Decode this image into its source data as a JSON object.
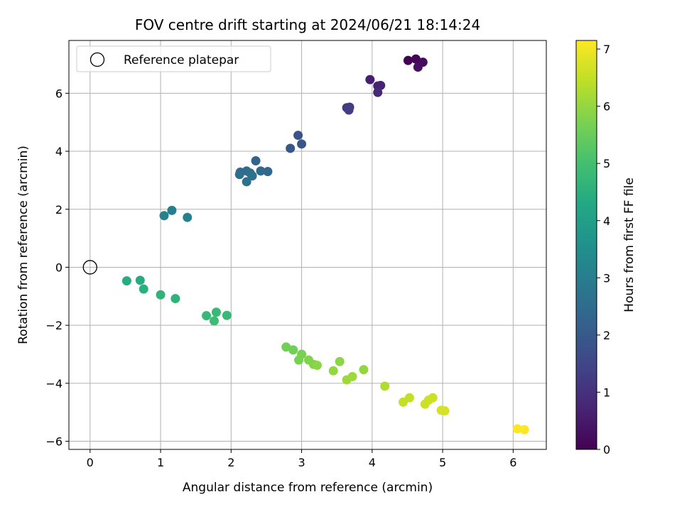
{
  "chart_data": {
    "type": "scatter",
    "title": "FOV centre drift starting at 2024/06/21 18:14:24",
    "xlabel": "Angular distance from reference (arcmin)",
    "ylabel": "Rotation from reference (arcmin)",
    "xlim": [
      -0.3,
      6.47
    ],
    "ylim": [
      -6.28,
      7.82
    ],
    "xticks": [
      0,
      1,
      2,
      3,
      4,
      5,
      6
    ],
    "yticks": [
      -6,
      -4,
      -2,
      0,
      2,
      4,
      6
    ],
    "grid": true,
    "legend": {
      "placement": "upper-left",
      "label": "Reference platepar"
    },
    "reference_point": {
      "x": 0,
      "y": 0
    },
    "colorbar": {
      "label": "Hours from first FF file",
      "colormap": "viridis",
      "range": [
        0,
        7.15
      ],
      "ticks": [
        0,
        1,
        2,
        3,
        4,
        5,
        6,
        7
      ]
    },
    "points": [
      {
        "x": 4.51,
        "y": 7.13,
        "t": 0.0
      },
      {
        "x": 4.62,
        "y": 7.18,
        "t": 0.1
      },
      {
        "x": 4.72,
        "y": 7.07,
        "t": 0.2
      },
      {
        "x": 4.65,
        "y": 6.9,
        "t": 0.3
      },
      {
        "x": 3.97,
        "y": 6.47,
        "t": 0.6
      },
      {
        "x": 4.08,
        "y": 6.25,
        "t": 0.7
      },
      {
        "x": 4.12,
        "y": 6.27,
        "t": 0.7
      },
      {
        "x": 4.08,
        "y": 6.03,
        "t": 0.8
      },
      {
        "x": 3.64,
        "y": 5.5,
        "t": 1.2
      },
      {
        "x": 3.68,
        "y": 5.52,
        "t": 1.2
      },
      {
        "x": 3.67,
        "y": 5.42,
        "t": 1.3
      },
      {
        "x": 2.95,
        "y": 4.55,
        "t": 1.8
      },
      {
        "x": 3.0,
        "y": 4.25,
        "t": 1.9
      },
      {
        "x": 2.84,
        "y": 4.1,
        "t": 1.9
      },
      {
        "x": 2.35,
        "y": 3.67,
        "t": 2.3
      },
      {
        "x": 2.42,
        "y": 3.32,
        "t": 2.4
      },
      {
        "x": 2.52,
        "y": 3.3,
        "t": 2.4
      },
      {
        "x": 2.13,
        "y": 3.28,
        "t": 2.5
      },
      {
        "x": 2.22,
        "y": 3.32,
        "t": 2.5
      },
      {
        "x": 2.12,
        "y": 3.2,
        "t": 2.6
      },
      {
        "x": 2.27,
        "y": 3.25,
        "t": 2.6
      },
      {
        "x": 2.3,
        "y": 3.15,
        "t": 2.6
      },
      {
        "x": 2.22,
        "y": 2.95,
        "t": 2.7
      },
      {
        "x": 1.16,
        "y": 1.96,
        "t": 3.0
      },
      {
        "x": 1.05,
        "y": 1.78,
        "t": 3.1
      },
      {
        "x": 1.38,
        "y": 1.72,
        "t": 3.1
      },
      {
        "x": 0.52,
        "y": -0.47,
        "t": 4.4
      },
      {
        "x": 0.71,
        "y": -0.45,
        "t": 4.4
      },
      {
        "x": 0.76,
        "y": -0.75,
        "t": 4.5
      },
      {
        "x": 1.0,
        "y": -0.95,
        "t": 4.6
      },
      {
        "x": 1.21,
        "y": -1.08,
        "t": 4.6
      },
      {
        "x": 1.79,
        "y": -1.55,
        "t": 4.8
      },
      {
        "x": 1.65,
        "y": -1.67,
        "t": 4.8
      },
      {
        "x": 1.94,
        "y": -1.66,
        "t": 4.8
      },
      {
        "x": 1.76,
        "y": -1.85,
        "t": 4.9
      },
      {
        "x": 2.78,
        "y": -2.75,
        "t": 5.6
      },
      {
        "x": 2.88,
        "y": -2.85,
        "t": 5.6
      },
      {
        "x": 3.0,
        "y": -3.0,
        "t": 5.7
      },
      {
        "x": 2.96,
        "y": -3.2,
        "t": 5.7
      },
      {
        "x": 3.1,
        "y": -3.2,
        "t": 5.8
      },
      {
        "x": 3.17,
        "y": -3.35,
        "t": 5.8
      },
      {
        "x": 3.22,
        "y": -3.38,
        "t": 5.9
      },
      {
        "x": 3.54,
        "y": -3.25,
        "t": 5.9
      },
      {
        "x": 3.45,
        "y": -3.57,
        "t": 6.0
      },
      {
        "x": 3.88,
        "y": -3.53,
        "t": 6.0
      },
      {
        "x": 3.72,
        "y": -3.77,
        "t": 6.1
      },
      {
        "x": 3.64,
        "y": -3.88,
        "t": 6.1
      },
      {
        "x": 4.18,
        "y": -4.1,
        "t": 6.3
      },
      {
        "x": 4.53,
        "y": -4.5,
        "t": 6.5
      },
      {
        "x": 4.44,
        "y": -4.65,
        "t": 6.5
      },
      {
        "x": 4.86,
        "y": -4.5,
        "t": 6.6
      },
      {
        "x": 4.8,
        "y": -4.58,
        "t": 6.6
      },
      {
        "x": 4.75,
        "y": -4.72,
        "t": 6.6
      },
      {
        "x": 4.98,
        "y": -4.93,
        "t": 6.7
      },
      {
        "x": 5.03,
        "y": -4.95,
        "t": 6.7
      },
      {
        "x": 6.06,
        "y": -5.57,
        "t": 7.1
      },
      {
        "x": 6.16,
        "y": -5.6,
        "t": 7.15
      }
    ]
  }
}
